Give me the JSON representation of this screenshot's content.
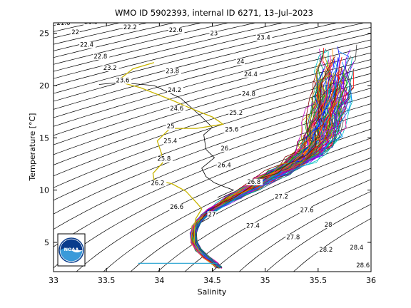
{
  "figure": {
    "title": "WMO ID 5902393, internal ID 6271, 13–Jul–2023",
    "logo_text": "NOAA"
  },
  "colors": {
    "background": "#ffffff",
    "axes": "#000000",
    "isopycnal": "#000000",
    "highlight_profile": "#c8b400",
    "reference_profile": "#000000",
    "surface_line": "#20a0d0",
    "noaa_blue": "#0a3c8c",
    "noaa_light": "#3a9ad9"
  },
  "chart_data": {
    "type": "scatter",
    "subtype": "temperature-salinity diagram with potential density contours",
    "title": "WMO ID 5902393, internal ID 6271, 13–Jul–2023",
    "xlabel": "Salinity",
    "ylabel": "Temperature [°C]",
    "xlim": [
      33,
      36
    ],
    "ylim": [
      2.2,
      26
    ],
    "x_ticks": [
      "33",
      "33.5",
      "34",
      "34.5",
      "35",
      "35.5",
      "36"
    ],
    "y_ticks": [
      "5",
      "10",
      "15",
      "20",
      "25"
    ],
    "x_tick_values": [
      33,
      33.5,
      34,
      34.5,
      35,
      35.5,
      36
    ],
    "y_tick_values": [
      5,
      10,
      15,
      20,
      25
    ],
    "grid": false,
    "legend": "none",
    "contour_levels": [
      21.6,
      21.8,
      22,
      22.2,
      22.4,
      22.6,
      22.8,
      23,
      23.2,
      23.4,
      23.6,
      23.8,
      24,
      24.2,
      24.4,
      24.6,
      24.8,
      25,
      25.2,
      25.4,
      25.6,
      25.8,
      26,
      26.2,
      26.4,
      26.6,
      26.8,
      27,
      27.2,
      27.4,
      27.6,
      27.8,
      28,
      28.2,
      28.4,
      28.6
    ],
    "contour_labels": [
      {
        "text": "21.6",
        "s": 33.03,
        "t": 25.8
      },
      {
        "text": "21.8",
        "s": 33.29,
        "t": 25.9
      },
      {
        "text": "22",
        "s": 33.17,
        "t": 24.9
      },
      {
        "text": "22.2",
        "s": 33.66,
        "t": 25.4
      },
      {
        "text": "22.4",
        "s": 33.25,
        "t": 23.7
      },
      {
        "text": "22.6",
        "s": 34.09,
        "t": 25.1
      },
      {
        "text": "22.8",
        "s": 33.38,
        "t": 22.6
      },
      {
        "text": "23",
        "s": 34.48,
        "t": 24.8
      },
      {
        "text": "23.2",
        "s": 33.47,
        "t": 21.5
      },
      {
        "text": "23.4",
        "s": 34.92,
        "t": 24.4
      },
      {
        "text": "23.6",
        "s": 33.59,
        "t": 20.3
      },
      {
        "text": "23.8",
        "s": 34.06,
        "t": 21.2
      },
      {
        "text": "24",
        "s": 34.73,
        "t": 22.1
      },
      {
        "text": "24.2",
        "s": 34.08,
        "t": 19.4
      },
      {
        "text": "24.4",
        "s": 34.8,
        "t": 20.9
      },
      {
        "text": "24.6",
        "s": 34.1,
        "t": 17.6
      },
      {
        "text": "24.8",
        "s": 34.78,
        "t": 19.0
      },
      {
        "text": "25",
        "s": 34.07,
        "t": 15.9
      },
      {
        "text": "25.2",
        "s": 34.66,
        "t": 17.2
      },
      {
        "text": "25.4",
        "s": 34.04,
        "t": 14.5
      },
      {
        "text": "25.6",
        "s": 34.62,
        "t": 15.6
      },
      {
        "text": "25.8",
        "s": 33.98,
        "t": 12.8
      },
      {
        "text": "26",
        "s": 34.58,
        "t": 13.8
      },
      {
        "text": "26.2",
        "s": 33.92,
        "t": 10.5
      },
      {
        "text": "26.4",
        "s": 34.55,
        "t": 12.2
      },
      {
        "text": "26.6",
        "s": 34.1,
        "t": 8.2
      },
      {
        "text": "26.8",
        "s": 34.83,
        "t": 10.6
      },
      {
        "text": "27",
        "s": 34.46,
        "t": 7.5
      },
      {
        "text": "27.2",
        "s": 35.09,
        "t": 9.2
      },
      {
        "text": "27.4",
        "s": 34.82,
        "t": 6.4
      },
      {
        "text": "27.6",
        "s": 35.33,
        "t": 7.9
      },
      {
        "text": "27.8",
        "s": 35.2,
        "t": 5.3
      },
      {
        "text": "28",
        "s": 35.56,
        "t": 6.5
      },
      {
        "text": "28.2",
        "s": 35.51,
        "t": 4.1
      },
      {
        "text": "28.4",
        "s": 35.8,
        "t": 4.3
      },
      {
        "text": "28.6",
        "s": 35.86,
        "t": 2.6
      }
    ],
    "series": [
      {
        "role": "ensemble",
        "count": 110,
        "points": [
          [
            34.56,
            2.6
          ],
          [
            34.52,
            3.0
          ],
          [
            34.44,
            3.6
          ],
          [
            34.37,
            4.3
          ],
          [
            34.33,
            5.0
          ],
          [
            34.32,
            5.8
          ],
          [
            34.34,
            6.5
          ],
          [
            34.38,
            7.1
          ],
          [
            34.43,
            7.6
          ],
          [
            34.5,
            8.1
          ],
          [
            34.6,
            8.7
          ],
          [
            34.72,
            9.4
          ],
          [
            34.86,
            10.2
          ],
          [
            35.0,
            11.0
          ],
          [
            35.12,
            11.7
          ],
          [
            35.24,
            12.3
          ],
          [
            35.34,
            12.9
          ],
          [
            35.42,
            13.6
          ],
          [
            35.48,
            14.4
          ],
          [
            35.52,
            15.3
          ],
          [
            35.55,
            16.3
          ],
          [
            35.58,
            17.5
          ],
          [
            35.61,
            18.8
          ],
          [
            35.63,
            20.1
          ],
          [
            35.65,
            21.4
          ],
          [
            35.66,
            22.6
          ],
          [
            35.67,
            23.6
          ]
        ]
      },
      {
        "role": "selected-profile",
        "points": [
          [
            33.95,
            22.2
          ],
          [
            33.75,
            21.6
          ],
          [
            33.6,
            20.4
          ],
          [
            33.82,
            19.8
          ],
          [
            34.12,
            18.6
          ],
          [
            34.3,
            17.8
          ],
          [
            34.5,
            17.0
          ],
          [
            34.56,
            16.6
          ],
          [
            34.6,
            16.3
          ],
          [
            34.35,
            15.9
          ],
          [
            34.1,
            15.9
          ],
          [
            33.98,
            14.7
          ],
          [
            34.02,
            13.5
          ],
          [
            34.03,
            12.6
          ],
          [
            33.94,
            11.6
          ],
          [
            33.95,
            11.0
          ],
          [
            34.12,
            10.6
          ],
          [
            34.25,
            9.9
          ],
          [
            34.36,
            8.7
          ],
          [
            34.4,
            8.2
          ],
          [
            34.34,
            7.2
          ],
          [
            34.33,
            6.0
          ],
          [
            34.33,
            4.9
          ]
        ]
      },
      {
        "role": "reference-profile",
        "points": [
          [
            33.43,
            20.1
          ],
          [
            33.62,
            20.3
          ],
          [
            33.95,
            20.0
          ],
          [
            34.2,
            18.8
          ],
          [
            34.4,
            17.0
          ],
          [
            34.5,
            16.0
          ],
          [
            34.42,
            15.3
          ],
          [
            34.44,
            13.9
          ],
          [
            34.52,
            13.1
          ],
          [
            34.4,
            12.1
          ],
          [
            34.44,
            11.3
          ],
          [
            34.52,
            10.7
          ],
          [
            34.62,
            10.3
          ],
          [
            34.7,
            10.0
          ],
          [
            34.55,
            9.3
          ]
        ]
      },
      {
        "role": "surface-segment",
        "points": [
          [
            33.8,
            3.0
          ],
          [
            34.55,
            3.0
          ]
        ]
      }
    ]
  }
}
